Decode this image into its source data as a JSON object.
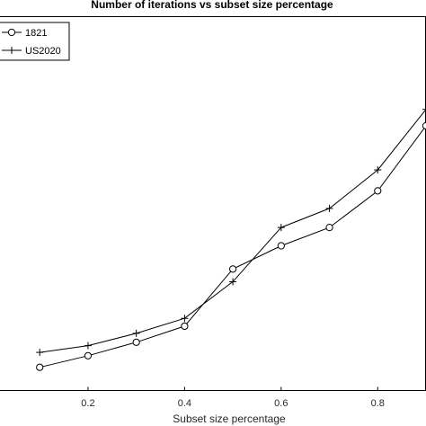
{
  "chart_data": {
    "type": "line",
    "title": "Number of iterations vs subset size percentage",
    "xlabel": "Subset size percentage",
    "ylabel": "",
    "xlim": [
      0,
      0.9
    ],
    "ylim": [
      0,
      1
    ],
    "xticks": [
      0.2,
      0.4,
      0.6,
      0.8
    ],
    "xtick_labels": [
      "0.2",
      "0.4",
      "0.6",
      "0.8"
    ],
    "grid": false,
    "legend_position": "top-left",
    "x": [
      0.1,
      0.2,
      0.3,
      0.4,
      0.5,
      0.6,
      0.7,
      0.8,
      0.9
    ],
    "series": [
      {
        "name": "1821",
        "marker": "circle",
        "color": "#000000",
        "values": [
          0.062,
          0.093,
          0.129,
          0.172,
          0.325,
          0.387,
          0.436,
          0.534,
          0.708
        ]
      },
      {
        "name": "US2020",
        "marker": "plus",
        "color": "#000000",
        "values": [
          0.102,
          0.12,
          0.153,
          0.193,
          0.291,
          0.436,
          0.487,
          0.59,
          0.752
        ]
      }
    ]
  }
}
